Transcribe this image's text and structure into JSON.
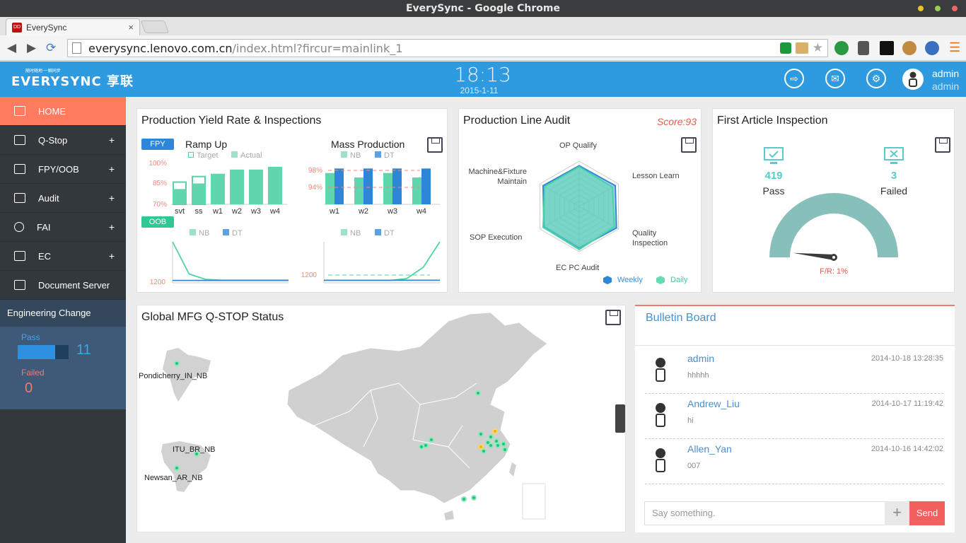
{
  "window": {
    "title": "EverySync - Google Chrome"
  },
  "browser": {
    "tab_title": "EverySync",
    "tab_favicon": "DD",
    "close": "×",
    "url_host": "everysync.lenovo.com.cn",
    "url_path": "/index.html?fircur=mainlink_1"
  },
  "header": {
    "logo_sub": "随时随地·一触同步",
    "logo": "EVERYSYNC 享联",
    "time": "18:13",
    "date": "2015-1-11",
    "user_name": "admin",
    "user_role": "admin"
  },
  "sidebar": {
    "items": [
      {
        "label": "HOME",
        "active": true
      },
      {
        "label": "Q-Stop",
        "expand": "+"
      },
      {
        "label": "FPY/OOB",
        "expand": "+"
      },
      {
        "label": "Audit",
        "expand": "+"
      },
      {
        "label": "FAI",
        "expand": "+"
      },
      {
        "label": "EC",
        "expand": "+"
      },
      {
        "label": "Document Server"
      }
    ],
    "ec": {
      "title": "Engineering Change",
      "pass_label": "Pass",
      "pass_value": "11",
      "pass_fraction": 0.73,
      "failed_label": "Failed",
      "failed_value": "0"
    }
  },
  "yield_panel": {
    "title": "Production Yield Rate & Inspections",
    "fpy_badge": "FPY",
    "oob_badge": "OOB",
    "ramp_title": "Ramp Up",
    "mass_title": "Mass Production",
    "legend_target": "Target",
    "legend_actual": "Actual",
    "legend_nb": "NB",
    "legend_dt": "DT"
  },
  "audit_panel": {
    "title": "Production Line Audit",
    "score": "Score:93",
    "axes": [
      "OP Qualify",
      "Lesson Learn",
      "Quality Inspection",
      "EC PC Audit",
      "SOP Execution",
      "Machine&Fixture Maintain"
    ],
    "legend_weekly": "Weekly",
    "legend_daily": "Daily"
  },
  "fai_panel": {
    "title": "First Article Inspection",
    "pass_value": "419",
    "pass_label": "Pass",
    "failed_value": "3",
    "failed_label": "Failed",
    "fr_label": "F/R: 1%",
    "fr_value": 0.01
  },
  "map_panel": {
    "title": "Global MFG Q-STOP Status",
    "labels": [
      "Pondicherry_IN_NB",
      "ITU_BR_NB",
      "Newsan_AR_NB"
    ]
  },
  "bulletin": {
    "title": "Bulletin Board",
    "messages": [
      {
        "name": "admin",
        "text": "hhhhh",
        "time": "2014-10-18 13:28:35"
      },
      {
        "name": "Andrew_Liu",
        "text": "hi",
        "time": "2014-10-17 11:19:42"
      },
      {
        "name": "Allen_Yan",
        "text": "007",
        "time": "2014-10-16 14:42:02"
      }
    ],
    "placeholder": "Say something.",
    "add": "+",
    "send": "Send"
  },
  "chart_data": [
    {
      "type": "bar",
      "name": "Ramp Up",
      "categories": [
        "svt",
        "ss",
        "w1",
        "w2",
        "w3",
        "w4"
      ],
      "series": [
        {
          "name": "Target",
          "values": [
            86,
            90,
            null,
            null,
            null,
            null
          ]
        },
        {
          "name": "Actual",
          "values": [
            81,
            85,
            92,
            95,
            95,
            97
          ]
        }
      ],
      "ylim": [
        70,
        100
      ],
      "yticks": [
        "100%",
        "85%",
        "70%"
      ]
    },
    {
      "type": "bar",
      "name": "Mass Production",
      "categories": [
        "w1",
        "w2",
        "w3",
        "w4"
      ],
      "series": [
        {
          "name": "NB",
          "values": [
            97,
            96,
            97,
            96
          ]
        },
        {
          "name": "DT",
          "values": [
            98,
            98,
            98,
            98
          ]
        }
      ],
      "ylim": [
        90,
        99
      ],
      "yticks": [
        "98%",
        "94%"
      ]
    },
    {
      "type": "line",
      "name": "OOB Ramp",
      "series": [
        {
          "name": "NB",
          "values": [
            9000,
            2500,
            1400,
            1250,
            1250,
            1250,
            1250,
            1250
          ]
        },
        {
          "name": "DT",
          "values": [
            1200,
            1200,
            1200,
            1200,
            1200,
            1200,
            1200,
            1200
          ]
        }
      ],
      "ytick": "1200"
    },
    {
      "type": "line",
      "name": "OOB Mass",
      "series": [
        {
          "name": "NB",
          "values": [
            1200,
            1180,
            1180,
            1180,
            1180,
            1500,
            3500,
            8000
          ]
        },
        {
          "name": "DT",
          "values": [
            1200,
            1200,
            1200,
            1200,
            1200,
            1200,
            1200,
            1200
          ]
        }
      ],
      "ytick": "1200"
    },
    {
      "type": "radar",
      "axes": [
        "OP Qualify",
        "Lesson Learn",
        "Quality Inspection",
        "EC PC Audit",
        "SOP Execution",
        "Machine&Fixture Maintain"
      ],
      "series": [
        {
          "name": "Weekly",
          "values": [
            90,
            92,
            95,
            92,
            90,
            92
          ]
        },
        {
          "name": "Daily",
          "values": [
            88,
            85,
            90,
            95,
            92,
            88
          ]
        }
      ],
      "max": 100
    }
  ]
}
